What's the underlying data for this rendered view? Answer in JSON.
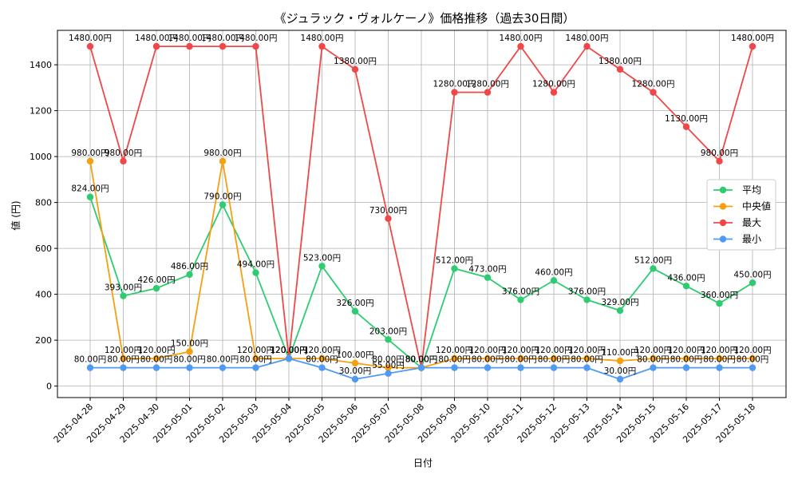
{
  "chart_data": {
    "type": "line",
    "title": "《ジュラック・ヴォルケーノ》価格推移（過去30日間）",
    "xlabel": "日付",
    "ylabel": "値 (円)",
    "ylim": [
      -50,
      1550
    ],
    "yticks": [
      0,
      200,
      400,
      600,
      800,
      1000,
      1200,
      1400
    ],
    "grid": true,
    "legend_position": "center-right",
    "label_suffix": "円",
    "categories": [
      "2025-04-28",
      "2025-04-29",
      "2025-04-30",
      "2025-05-01",
      "2025-05-02",
      "2025-05-03",
      "2025-05-04",
      "2025-05-05",
      "2025-05-06",
      "2025-05-07",
      "2025-05-08",
      "2025-05-09",
      "2025-05-10",
      "2025-05-11",
      "2025-05-12",
      "2025-05-13",
      "2025-05-14",
      "2025-05-15",
      "2025-05-16",
      "2025-05-17",
      "2025-05-18"
    ],
    "series": [
      {
        "name": "平均",
        "color": "#2ecc71",
        "values": [
          824,
          393,
          426,
          486,
          790,
          494,
          120,
          523,
          326,
          203,
          80,
          512,
          473,
          376,
          460,
          376,
          329,
          512,
          436,
          360,
          450
        ]
      },
      {
        "name": "中央値",
        "color": "#f5a00f",
        "values": [
          980,
          120,
          120,
          150,
          980,
          120,
          120,
          120,
          100,
          80,
          80,
          120,
          120,
          120,
          120,
          120,
          110,
          120,
          120,
          120,
          120
        ]
      },
      {
        "name": "最大",
        "color": "#f04848",
        "values": [
          1480,
          980,
          1480,
          1480,
          1480,
          1480,
          120,
          1480,
          1380,
          730,
          80,
          1280,
          1280,
          1480,
          1280,
          1480,
          1380,
          1280,
          1130,
          980,
          1480
        ]
      },
      {
        "name": "最小",
        "color": "#4f9af5",
        "values": [
          80,
          80,
          80,
          80,
          80,
          80,
          120,
          80,
          30,
          55,
          80,
          80,
          80,
          80,
          80,
          80,
          30,
          80,
          80,
          80,
          80
        ]
      }
    ]
  }
}
